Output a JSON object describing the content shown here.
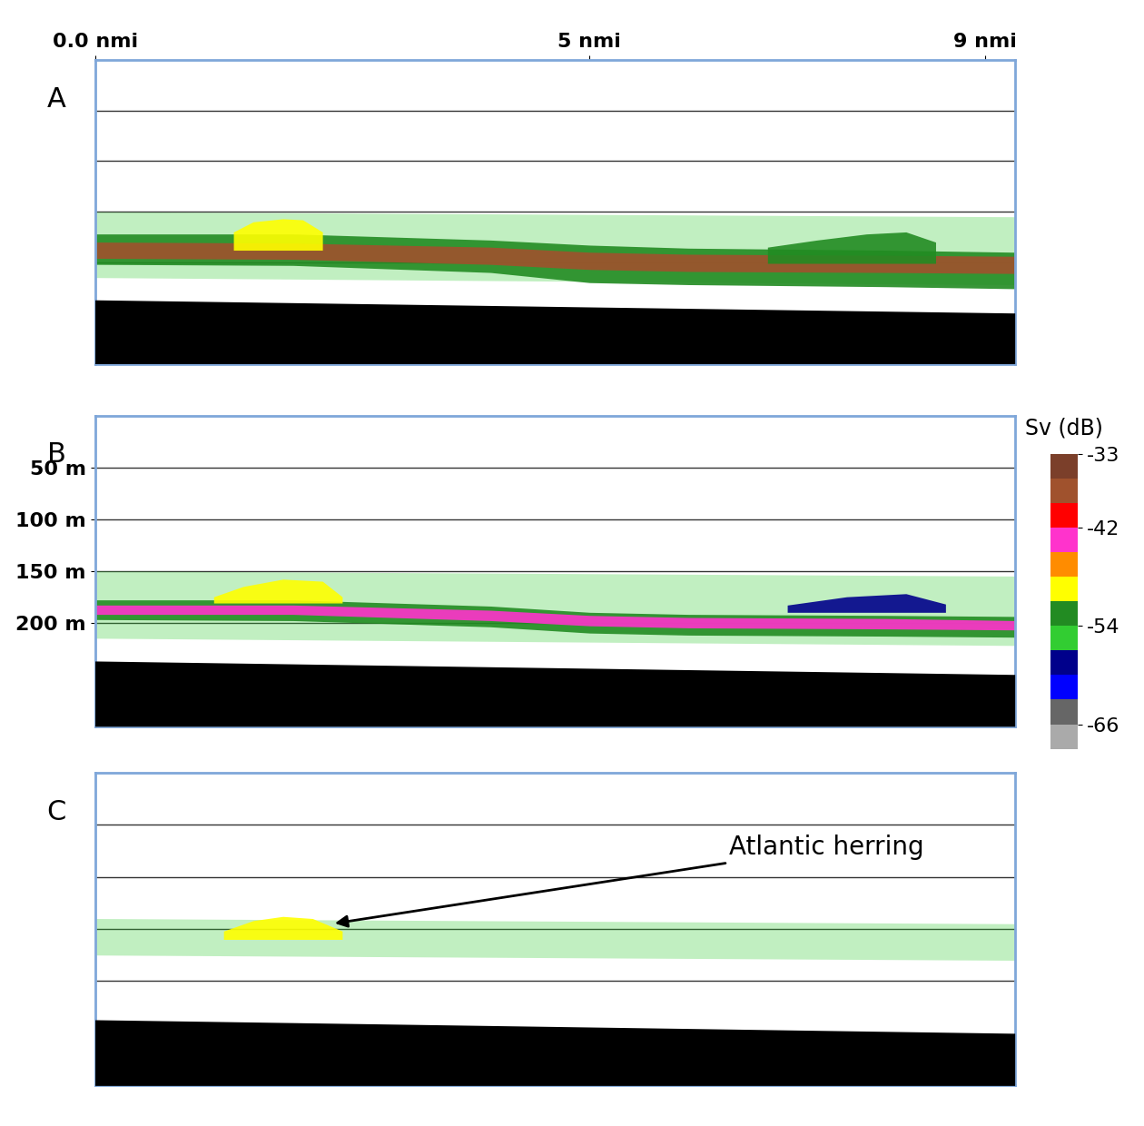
{
  "chart_data": {
    "type": "echogram",
    "x_tick_labels": [
      {
        "value": 0,
        "label": "0.0 nmi"
      },
      {
        "value": 5,
        "label": "5 nmi"
      },
      {
        "value": 9,
        "label": "9 nmi"
      }
    ],
    "xlim": [
      0,
      9.3
    ],
    "ylim": [
      300,
      0
    ],
    "yticks": [
      {
        "value": 50,
        "label": "50 m"
      },
      {
        "value": 100,
        "label": "100 m"
      },
      {
        "value": 150,
        "label": "150 m"
      },
      {
        "value": 200,
        "label": "200 m"
      }
    ],
    "grid": true,
    "colorbar": {
      "label": "Sv (dB)",
      "range": [
        -69,
        -33
      ],
      "ticks": [
        -33,
        -42,
        -54,
        -66
      ],
      "colors": [
        "#aaaaaa",
        "#666666",
        "#0000ff",
        "#00008b",
        "#32cd32",
        "#228b22",
        "#ffff00",
        "#ff8c00",
        "#ff33cc",
        "#ff0000",
        "#a0522d",
        "#7b3f2a"
      ]
    },
    "panels": [
      {
        "label": "A",
        "tick_labels": "x",
        "seafloor": {
          "x": [
            0,
            9.3
          ],
          "depth": [
            237,
            250
          ],
          "color": "#000000"
        },
        "layers": [
          {
            "type": "band",
            "x": [
              0,
              9.3
            ],
            "top": [
              150,
              155
            ],
            "bottom": [
              215,
              222
            ],
            "sv": -56
          },
          {
            "type": "layer",
            "x": [
              0,
              2,
              4,
              5,
              6,
              8,
              9.3
            ],
            "top": [
              172,
              172,
              178,
              183,
              186,
              188,
              190
            ],
            "bottom": [
              202,
              203,
              210,
              220,
              222,
              224,
              226
            ],
            "sv": -52
          },
          {
            "type": "layer",
            "x": [
              0,
              2,
              4,
              5,
              6,
              8,
              9.3
            ],
            "top": [
              180,
              181,
              185,
              190,
              192,
              193,
              194
            ],
            "bottom": [
              196,
              197,
              202,
              207,
              209,
              210,
              211
            ],
            "sv": -38
          },
          {
            "type": "layer",
            "x": [
              1.4,
              1.6,
              1.9,
              2.1,
              2.3
            ],
            "top": [
              170,
              160,
              157,
              158,
              170
            ],
            "bottom": [
              188,
              188,
              188,
              188,
              188
            ],
            "sv": -50
          },
          {
            "type": "layer",
            "x": [
              6.8,
              7.3,
              7.8,
              8.2,
              8.5
            ],
            "top": [
              185,
              178,
              172,
              170,
              180
            ],
            "bottom": [
              201,
              201,
              201,
              201,
              201
            ],
            "sv": -52
          }
        ]
      },
      {
        "label": "B",
        "tick_labels": "y",
        "seafloor": {
          "x": [
            0,
            9.3
          ],
          "depth": [
            237,
            250
          ],
          "color": "#000000"
        },
        "layers": [
          {
            "type": "band",
            "x": [
              0,
              9.3
            ],
            "top": [
              150,
              155
            ],
            "bottom": [
              215,
              222
            ],
            "sv": -56
          },
          {
            "type": "layer",
            "x": [
              0,
              2,
              4,
              5,
              6,
              8,
              9.3
            ],
            "top": [
              178,
              178,
              184,
              190,
              192,
              193,
              194
            ],
            "bottom": [
              197,
              198,
              204,
              210,
              212,
              213,
              214
            ],
            "sv": -54
          },
          {
            "type": "layer",
            "x": [
              0,
              2,
              4,
              5,
              6,
              8,
              9.3
            ],
            "top": [
              183,
              183,
              188,
              193,
              195,
              196,
              198
            ],
            "bottom": [
              192,
              192,
              198,
              203,
              205,
              206,
              207
            ],
            "sv": -44
          },
          {
            "type": "layer",
            "x": [
              1.2,
              1.5,
              1.9,
              2.3,
              2.5
            ],
            "top": [
              175,
              165,
              158,
              160,
              175
            ],
            "bottom": [
              181,
              181,
              181,
              181,
              181
            ],
            "sv": -50
          },
          {
            "type": "layer",
            "x": [
              7.0,
              7.6,
              8.2,
              8.6
            ],
            "top": [
              183,
              175,
              172,
              182
            ],
            "bottom": [
              190,
              190,
              190,
              190
            ],
            "sv": -60
          }
        ]
      },
      {
        "label": "C",
        "tick_labels": false,
        "seafloor": {
          "x": [
            0,
            9.3
          ],
          "depth": [
            237,
            250
          ],
          "color": "#000000"
        },
        "layers": [
          {
            "type": "band",
            "x": [
              0,
              9.3
            ],
            "top": [
              140,
              145
            ],
            "bottom": [
              175,
              180
            ],
            "sv": -56
          },
          {
            "type": "layer",
            "x": [
              1.3,
              1.6,
              1.9,
              2.2,
              2.5
            ],
            "top": [
              152,
              142,
              138,
              140,
              152
            ],
            "bottom": [
              160,
              160,
              160,
              160,
              160
            ],
            "sv": -50
          }
        ],
        "annotation": {
          "text": "Atlantic herring",
          "x": 7.4,
          "depth": 72,
          "point_x": 2.4,
          "point_depth": 145
        }
      }
    ]
  }
}
